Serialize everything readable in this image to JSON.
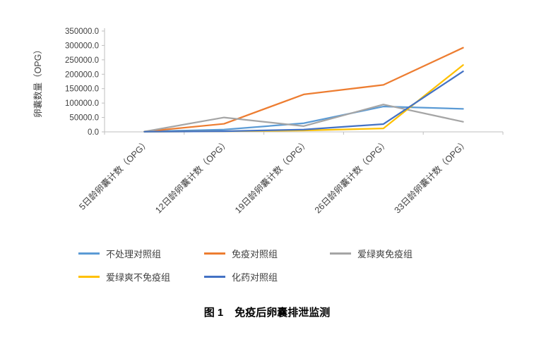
{
  "figure": {
    "caption": {
      "label": "图 1",
      "title": "免疫后卵囊排泄监测"
    }
  },
  "chart_data": {
    "type": "line",
    "title": "",
    "xlabel": "",
    "ylabel": "卵囊数量（OPG）",
    "ylim": [
      0,
      350000
    ],
    "ytick_labels": [
      "0.0",
      "50000.0",
      "100000.0",
      "150000.0",
      "200000.0",
      "250000.0",
      "300000.0",
      "350000.0"
    ],
    "grid": false,
    "legend_position": "bottom",
    "categories": [
      "5日龄卵囊计数（OPG）",
      "12日龄卵囊计数（OPG）",
      "19日龄卵囊计数（OPG）",
      "26日龄卵囊计数（OPG）",
      "33日龄卵囊计数（OPG）"
    ],
    "series": [
      {
        "name": "不处理对照组",
        "color": "#5B9BD5",
        "values": [
          1000,
          8000,
          30000,
          88000,
          80000
        ]
      },
      {
        "name": "免疫对照组",
        "color": "#ED7D31",
        "values": [
          1000,
          28000,
          130000,
          163000,
          292000
        ]
      },
      {
        "name": "爱绿爽免疫组",
        "color": "#A5A5A5",
        "values": [
          1000,
          50000,
          20000,
          95000,
          35000
        ]
      },
      {
        "name": "爱绿爽不免疫组",
        "color": "#FFC000",
        "values": [
          500,
          2000,
          5000,
          12000,
          232000
        ]
      },
      {
        "name": "化药对照组",
        "color": "#4472C4",
        "values": [
          500,
          2000,
          8000,
          27000,
          210000
        ]
      }
    ],
    "axis_color": "#bfbfbf"
  }
}
